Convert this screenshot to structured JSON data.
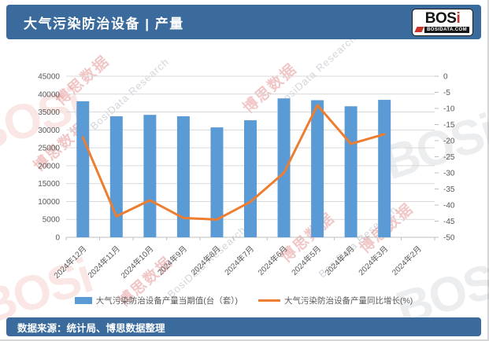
{
  "header": {
    "title": "大气污染防治设备 | 产量"
  },
  "logo": {
    "wordmark_main": "BOS",
    "wordmark_accent": "i",
    "site": "BOSIDATA.COM"
  },
  "watermarks": {
    "cn": "博思数据",
    "en": "BosiData Research",
    "brand": "BOSi"
  },
  "chart_data": {
    "type": "combo",
    "categories": [
      "2024年12月",
      "2024年11月",
      "2024年10月",
      "2024年9月",
      "2024年8月",
      "2024年7月",
      "2024年6月",
      "2024年5月",
      "2024年4月",
      "2024年3月",
      "2024年2月"
    ],
    "series": [
      {
        "name": "大气污染防治设备产量当期值(台（套）)",
        "type": "bar",
        "axis": "left",
        "color": "#5B9BD5",
        "values": [
          38000,
          33800,
          34200,
          33800,
          30700,
          32700,
          38800,
          38300,
          36600,
          38400,
          null
        ]
      },
      {
        "name": "大气污染防治设备产量同比增长(%)",
        "type": "line",
        "axis": "right",
        "color": "#ED7D31",
        "values": [
          -19,
          -43.5,
          -38.5,
          -44,
          -44.5,
          -39,
          -30,
          -9,
          -21,
          -18,
          null
        ]
      }
    ],
    "axes": {
      "left": {
        "min": 0,
        "max": 45000,
        "step": 5000
      },
      "right": {
        "min": -50,
        "max": 0,
        "step": 5
      }
    },
    "grid": true,
    "legend_position": "bottom"
  },
  "colors": {
    "header_bg": "#3A6B9C",
    "bar": "#5B9BD5",
    "line": "#ED7D31",
    "grid": "#D9D9D9",
    "axis_line": "#BFBFBF",
    "axis_text": "#595959",
    "watermark_red": "#D34E4E"
  },
  "footer": {
    "source": "数据来源：统计局、博思数据整理"
  }
}
